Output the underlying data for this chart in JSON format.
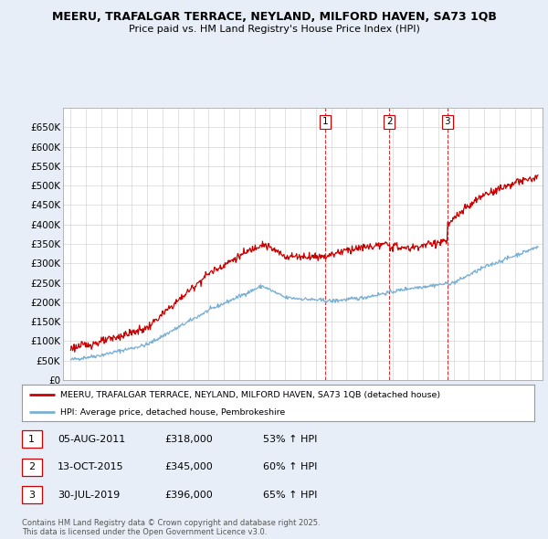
{
  "title_line1": "MEERU, TRAFALGAR TERRACE, NEYLAND, MILFORD HAVEN, SA73 1QB",
  "title_line2": "Price paid vs. HM Land Registry's House Price Index (HPI)",
  "legend_label1": "MEERU, TRAFALGAR TERRACE, NEYLAND, MILFORD HAVEN, SA73 1QB (detached house)",
  "legend_label2": "HPI: Average price, detached house, Pembrokeshire",
  "sale1": {
    "num": "1",
    "date": "05-AUG-2011",
    "price": "£318,000",
    "pct": "53% ↑ HPI"
  },
  "sale2": {
    "num": "2",
    "date": "13-OCT-2015",
    "price": "£345,000",
    "pct": "60% ↑ HPI"
  },
  "sale3": {
    "num": "3",
    "date": "30-JUL-2019",
    "price": "£396,000",
    "pct": "65% ↑ HPI"
  },
  "footnote": "Contains HM Land Registry data © Crown copyright and database right 2025.\nThis data is licensed under the Open Government Licence v3.0.",
  "vline_dates": [
    2011.6,
    2015.79,
    2019.58
  ],
  "vline_labels": [
    "1",
    "2",
    "3"
  ],
  "yticks": [
    0,
    50000,
    100000,
    150000,
    200000,
    250000,
    300000,
    350000,
    400000,
    450000,
    500000,
    550000,
    600000,
    650000
  ],
  "ylim": [
    0,
    700000
  ],
  "xlim_start": 1994.5,
  "xlim_end": 2025.8,
  "background_color": "#e8eef8",
  "plot_bg_color": "#ffffff",
  "red_color": "#cc0000",
  "blue_color": "#7ab0d4"
}
